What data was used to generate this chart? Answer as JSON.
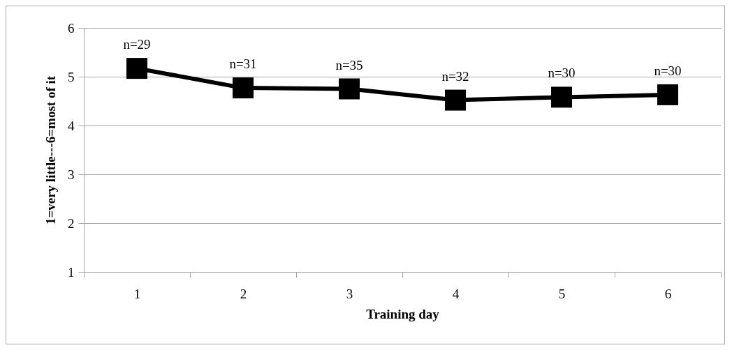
{
  "chart_data": {
    "type": "line",
    "xlabel": "Training day",
    "ylabel": "1=very little---6=most of it",
    "categories": [
      "1",
      "2",
      "3",
      "4",
      "5",
      "6"
    ],
    "series": [
      {
        "color": "#000000",
        "values": [
          5.17,
          4.77,
          4.75,
          4.52,
          4.58,
          4.63
        ]
      }
    ],
    "ylim": [
      1,
      6
    ],
    "yticks": [
      1,
      2,
      3,
      4,
      5,
      6
    ],
    "grid": "y",
    "marker": "square",
    "line_style": "solid",
    "annotations": [
      {
        "text": "n=29",
        "x": "1",
        "y": 5.17
      },
      {
        "text": "n=31",
        "x": "2",
        "y": 4.77
      },
      {
        "text": "n=35",
        "x": "3",
        "y": 4.75
      },
      {
        "text": "n=32",
        "x": "4",
        "y": 4.52
      },
      {
        "text": "n=30",
        "x": "5",
        "y": 4.58
      },
      {
        "text": "n=30",
        "x": "6",
        "y": 4.63
      }
    ]
  }
}
